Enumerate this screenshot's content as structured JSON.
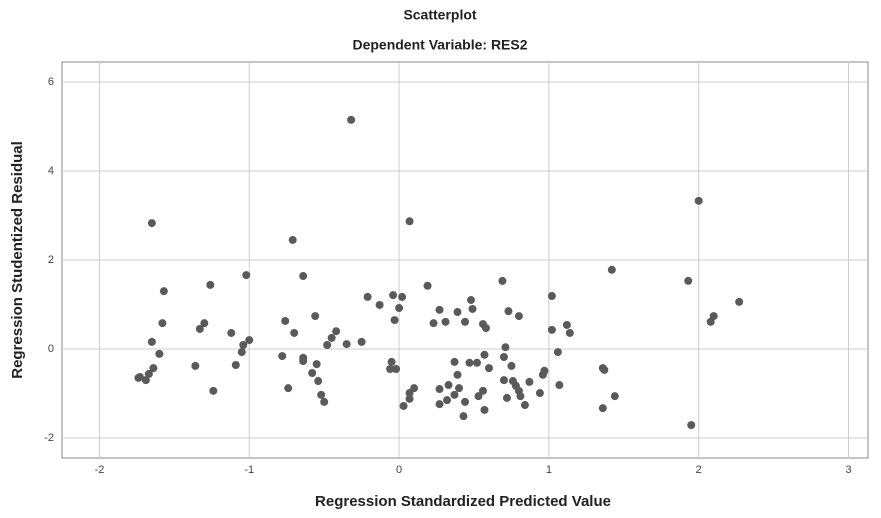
{
  "chart_data": {
    "type": "scatter",
    "title": "Scatterplot",
    "subtitle": "Dependent Variable: RES2",
    "x_label": "Regression Standardized Predicted Value",
    "y_label": "Regression Studentized Residual",
    "xlim": [
      -2.25,
      3.13
    ],
    "ylim": [
      -2.45,
      6.45
    ],
    "xticks": [
      -2,
      -1,
      0,
      1,
      2,
      3
    ],
    "yticks": [
      -2,
      0,
      2,
      4,
      6
    ],
    "grid": true,
    "color": "#5a5a5a",
    "x": [
      -0.32,
      -1.65,
      0.07,
      2.0,
      -0.71,
      0.69,
      -0.64,
      -1.02,
      -1.26,
      -1.57,
      1.42,
      1.93,
      2.27,
      2.1,
      2.08,
      1.02,
      -0.04,
      0.02,
      -0.21,
      -0.13,
      0,
      0.19,
      0.48,
      0.49,
      0.73,
      0.8,
      0.39,
      0.27,
      0.23,
      0.31,
      0.44,
      0.56,
      0.58,
      -0.03,
      1.02,
      1.12,
      1.14,
      -0.56,
      -0.76,
      -0.7,
      -0.42,
      -0.45,
      -0.48,
      -0.35,
      -0.25,
      -1.0,
      -1.04,
      -1.05,
      -1.12,
      -1.3,
      -1.33,
      -1.58,
      -1.65,
      -1.6,
      -1.36,
      -1.09,
      -1.64,
      -1.67,
      -1.73,
      -1.69,
      -1.74,
      -1.24,
      -0.78,
      -0.74,
      -0.64,
      -0.64,
      -0.55,
      -0.58,
      -0.54,
      -0.52,
      -0.5,
      -0.05,
      -0.06,
      -0.02,
      0.03,
      0.07,
      0.1,
      0.07,
      0.27,
      0.27,
      0.33,
      0.32,
      0.37,
      0.37,
      0.39,
      0.4,
      0.43,
      0.44,
      0.47,
      0.52,
      0.53,
      0.57,
      0.56,
      0.57,
      0.6,
      0.71,
      0.7,
      0.7,
      0.72,
      0.75,
      0.76,
      0.78,
      0.8,
      0.84,
      0.87,
      0.81,
      0.94,
      0.96,
      0.97,
      1.06,
      1.07,
      1.36,
      1.37,
      1.36,
      1.44,
      1.95
    ],
    "y": [
      5.15,
      2.83,
      2.87,
      3.33,
      2.45,
      1.53,
      1.64,
      1.66,
      1.44,
      1.3,
      1.78,
      1.53,
      1.06,
      0.74,
      0.61,
      1.19,
      1.21,
      1.17,
      1.17,
      0.99,
      0.92,
      1.42,
      1.1,
      0.9,
      0.85,
      0.74,
      0.83,
      0.88,
      0.58,
      0.61,
      0.61,
      0.56,
      0.47,
      0.65,
      0.43,
      0.54,
      0.36,
      0.74,
      0.63,
      0.36,
      0.4,
      0.25,
      0.09,
      0.11,
      0.16,
      0.2,
      0.09,
      -0.07,
      0.36,
      0.58,
      0.45,
      0.58,
      0.16,
      -0.11,
      -0.38,
      -0.36,
      -0.43,
      -0.56,
      -0.63,
      -0.7,
      -0.65,
      -0.94,
      -0.16,
      -0.88,
      -0.2,
      -0.27,
      -0.34,
      -0.54,
      -0.72,
      -1.03,
      -1.19,
      -0.29,
      -0.45,
      -0.45,
      -1.28,
      -1.12,
      -0.88,
      -0.99,
      -0.9,
      -1.24,
      -0.81,
      -1.15,
      -1.03,
      -0.29,
      -0.58,
      -0.88,
      -1.51,
      -1.19,
      -0.31,
      -0.31,
      -1.06,
      -0.13,
      -0.94,
      -1.37,
      -0.43,
      0.04,
      -0.18,
      -0.7,
      -1.1,
      -0.38,
      -0.72,
      -0.83,
      -0.94,
      -1.26,
      -0.74,
      -1.06,
      -0.99,
      -0.58,
      -0.49,
      -0.07,
      -0.81,
      -0.43,
      -0.47,
      -1.33,
      -1.06,
      -1.71
    ]
  }
}
